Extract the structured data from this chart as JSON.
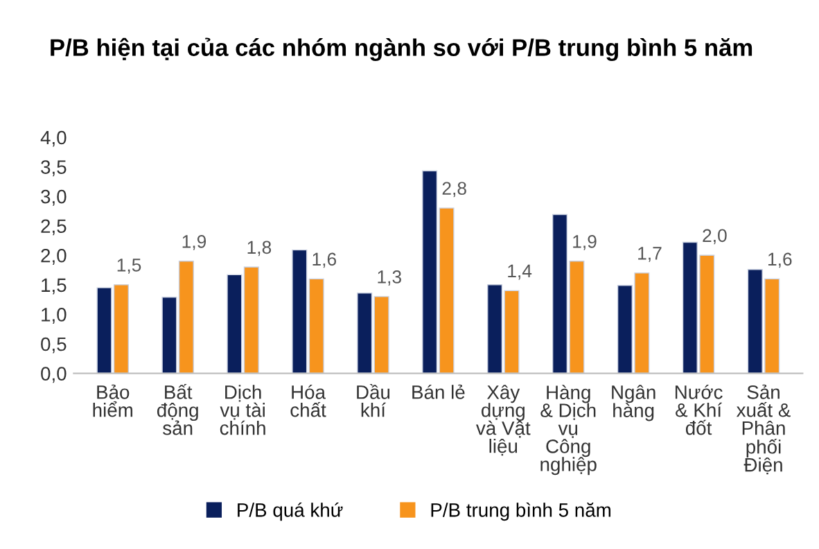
{
  "chart_data": {
    "type": "bar",
    "title": "P/B hiện tại của các nhóm ngành so với P/B trung bình 5 năm",
    "categories": [
      "Bảo\nhiểm",
      "Bất\nđộng\nsản",
      "Dịch\nvụ tài\nchính",
      "Hóa\nchất",
      "Dầu\nkhí",
      "Bán lẻ",
      "Xây\ndựng\nvà Vật\nliệu",
      "Hàng\n& Dịch\nvụ\nCông\nnghiệp",
      "Ngân\nhàng",
      "Nước\n& Khí\nđốt",
      "Sản\nxuất &\nPhân\nphối\nĐiện"
    ],
    "series": [
      {
        "name": "P/B quá khứ",
        "color": "#0a1f5c",
        "values": [
          1.45,
          1.29,
          1.67,
          2.09,
          1.36,
          3.43,
          1.5,
          2.69,
          1.49,
          2.22,
          1.76
        ]
      },
      {
        "name": "P/B trung bình 5 năm",
        "color": "#f7941d",
        "values": [
          1.5,
          1.9,
          1.8,
          1.6,
          1.3,
          2.8,
          1.4,
          1.9,
          1.7,
          2.0,
          1.6
        ],
        "value_labels": [
          "1,5",
          "1,9",
          "1,8",
          "1,6",
          "1,3",
          "2,8",
          "1,4",
          "1,9",
          "1,7",
          "2,0",
          "1,6"
        ]
      }
    ],
    "ylim": [
      0,
      4
    ],
    "yticks": [
      {
        "value": 0,
        "label": "0,0"
      },
      {
        "value": 0.5,
        "label": "0,5"
      },
      {
        "value": 1,
        "label": "1,0"
      },
      {
        "value": 1.5,
        "label": "1,5"
      },
      {
        "value": 2,
        "label": "2,0"
      },
      {
        "value": 2.5,
        "label": "2,5"
      },
      {
        "value": 3,
        "label": "3,0"
      },
      {
        "value": 3.5,
        "label": "3,5"
      },
      {
        "value": 4,
        "label": "4,0"
      }
    ],
    "grid": false,
    "legend": "bottom"
  }
}
